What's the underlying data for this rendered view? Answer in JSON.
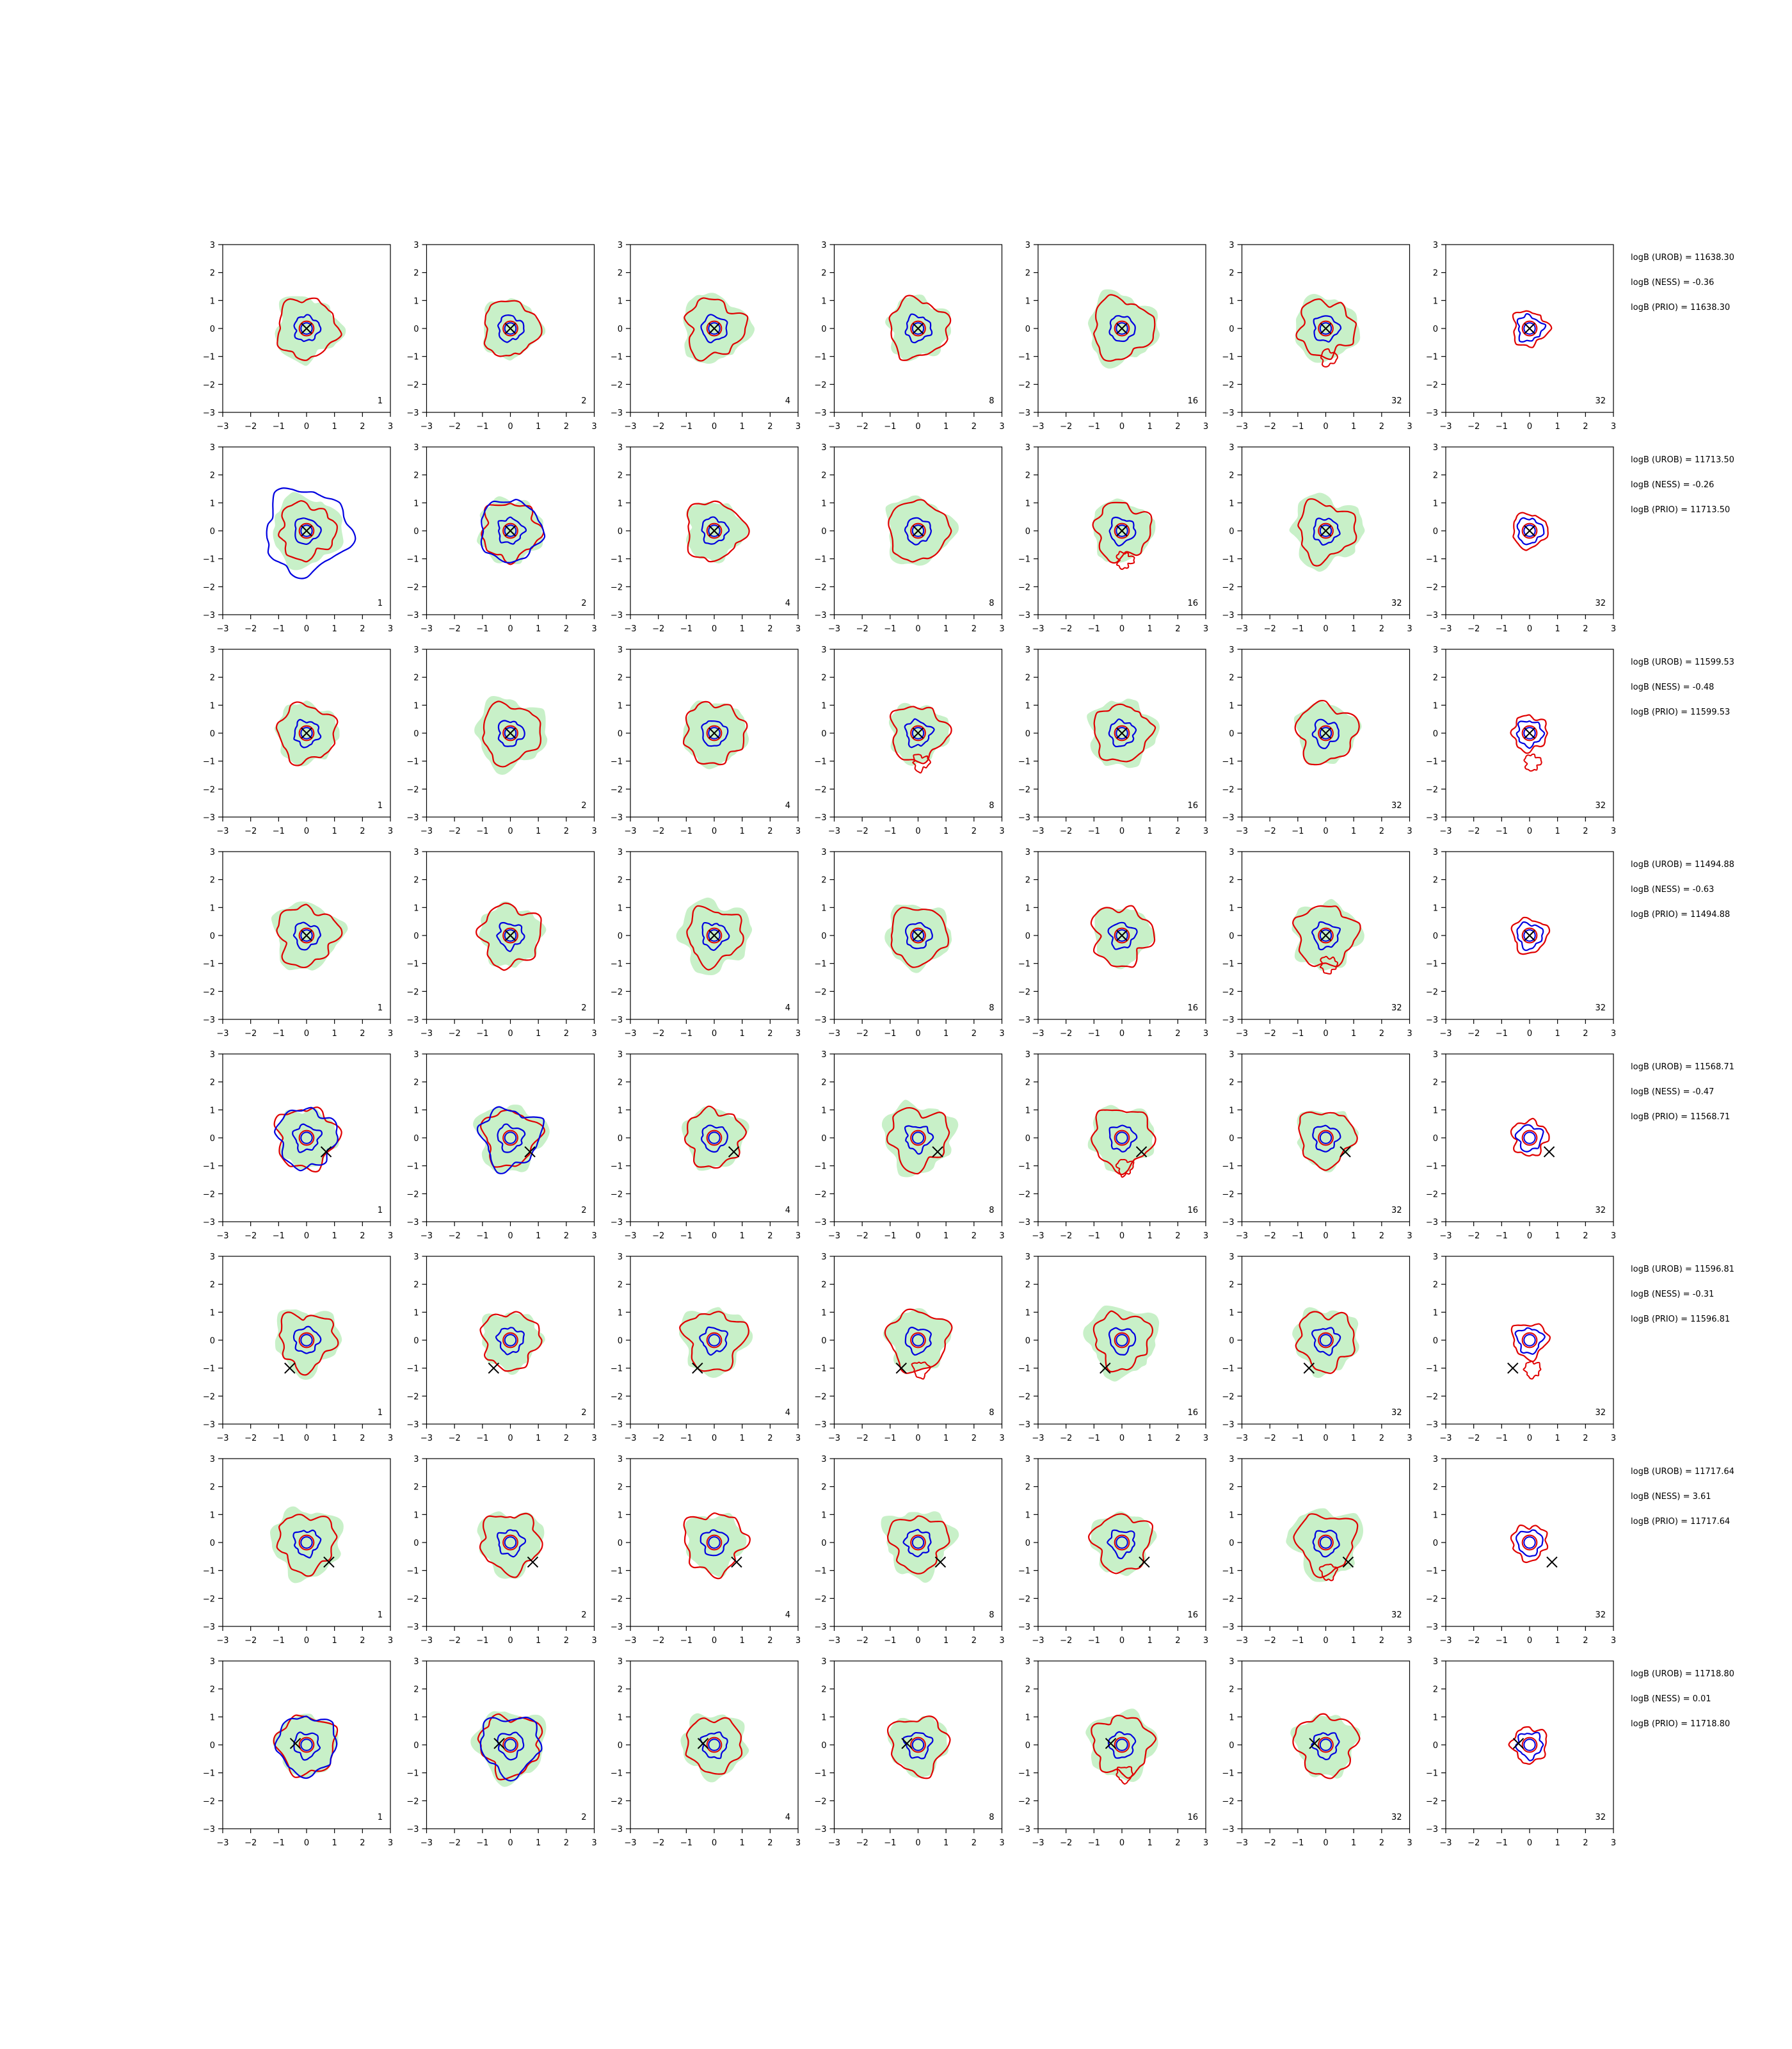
{
  "figure": {
    "rows": 8,
    "cols": 7,
    "axis": {
      "xlim": [
        -3,
        3
      ],
      "ylim": [
        -3,
        3
      ],
      "ticks": [
        -3,
        -2,
        -1,
        0,
        1,
        2,
        3
      ],
      "tick_labels": [
        "−3",
        "−2",
        "−1",
        "0",
        "1",
        "2",
        "3"
      ]
    },
    "colors": {
      "fill": "#c8f0c8",
      "outer": "#e00000",
      "inner": "#0000e0",
      "marker": "#000000"
    }
  },
  "chart_data": [
    {
      "type": "contour-grid-row",
      "row": 1,
      "panel_labels": [
        "1",
        "2",
        "4",
        "8",
        "16",
        "32",
        "32"
      ],
      "marker": [
        0,
        0
      ],
      "annotations": [
        "logB (UROB) = 11638.30",
        "logB (NESS) = -0.36",
        "logB (PRIO) = 11638.30"
      ]
    },
    {
      "type": "contour-grid-row",
      "row": 2,
      "panel_labels": [
        "1",
        "2",
        "4",
        "8",
        "16",
        "32",
        "32"
      ],
      "marker": [
        0,
        0
      ],
      "annotations": [
        "logB (UROB) = 11713.50",
        "logB (NESS) = -0.26",
        "logB (PRIO) = 11713.50"
      ]
    },
    {
      "type": "contour-grid-row",
      "row": 3,
      "panel_labels": [
        "1",
        "2",
        "4",
        "8",
        "16",
        "32",
        "32"
      ],
      "marker": [
        0,
        0
      ],
      "annotations": [
        "logB (UROB) = 11599.53",
        "logB (NESS) = -0.48",
        "logB (PRIO) = 11599.53"
      ]
    },
    {
      "type": "contour-grid-row",
      "row": 4,
      "panel_labels": [
        "1",
        "2",
        "4",
        "8",
        "16",
        "32",
        "32"
      ],
      "marker": [
        0,
        0
      ],
      "annotations": [
        "logB (UROB) = 11494.88",
        "logB (NESS) = -0.63",
        "logB (PRIO) = 11494.88"
      ]
    },
    {
      "type": "contour-grid-row",
      "row": 5,
      "panel_labels": [
        "1",
        "2",
        "4",
        "8",
        "16",
        "32",
        "32"
      ],
      "marker": [
        0.7,
        -0.5
      ],
      "annotations": [
        "logB (UROB) = 11568.71",
        "logB (NESS) = -0.47",
        "logB (PRIO) = 11568.71"
      ]
    },
    {
      "type": "contour-grid-row",
      "row": 6,
      "panel_labels": [
        "1",
        "2",
        "4",
        "8",
        "16",
        "32",
        "32"
      ],
      "marker": [
        -0.6,
        -1.0
      ],
      "annotations": [
        "logB (UROB) = 11596.81",
        "logB (NESS) = -0.31",
        "logB (PRIO) = 11596.81"
      ]
    },
    {
      "type": "contour-grid-row",
      "row": 7,
      "panel_labels": [
        "1",
        "2",
        "4",
        "8",
        "16",
        "32",
        "32"
      ],
      "marker": [
        0.8,
        -0.7
      ],
      "annotations": [
        "logB (UROB) = 11717.64",
        "logB (NESS) = 3.61",
        "logB (PRIO) = 11717.64"
      ]
    },
    {
      "type": "contour-grid-row",
      "row": 8,
      "panel_labels": [
        "1",
        "2",
        "4",
        "8",
        "16",
        "32",
        "32"
      ],
      "marker": [
        -0.4,
        0.05
      ],
      "annotations": [
        "logB (UROB) = 11718.80",
        "logB (NESS) = 0.01",
        "logB (PRIO) = 11718.80"
      ]
    }
  ]
}
